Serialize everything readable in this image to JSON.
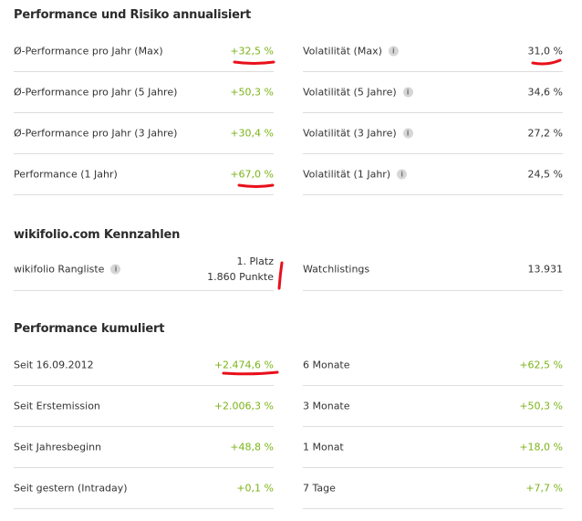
{
  "section1": {
    "title": "Performance und Risiko annualisiert",
    "rows_left": [
      {
        "label": "Ø-Performance pro Jahr (Max)",
        "value": "+32,5 %"
      },
      {
        "label": "Ø-Performance pro Jahr (5 Jahre)",
        "value": "+50,3 %"
      },
      {
        "label": "Ø-Performance pro Jahr (3 Jahre)",
        "value": "+30,4 %"
      },
      {
        "label": "Performance (1 Jahr)",
        "value": "+67,0 %"
      }
    ],
    "rows_right": [
      {
        "label": "Volatilität (Max)",
        "value": "31,0 %"
      },
      {
        "label": "Volatilität (5 Jahre)",
        "value": "34,6 %"
      },
      {
        "label": "Volatilität (3 Jahre)",
        "value": "27,2 %"
      },
      {
        "label": "Volatilität (1 Jahr)",
        "value": "24,5 %"
      }
    ]
  },
  "section2": {
    "title": "wikifolio.com Kennzahlen",
    "rangliste": {
      "label": "wikifolio Rangliste",
      "line1": "1. Platz",
      "line2": "1.860 Punkte"
    },
    "watchlistings": {
      "label": "Watchlistings",
      "value": "13.931"
    }
  },
  "section3": {
    "title": "Performance kumuliert",
    "rows_left": [
      {
        "label": "Seit 16.09.2012",
        "value": "+2.474,6 %"
      },
      {
        "label": "Seit Erstemission",
        "value": "+2.006,3 %"
      },
      {
        "label": "Seit Jahresbeginn",
        "value": "+48,8 %"
      },
      {
        "label": "Seit gestern (Intraday)",
        "value": "+0,1 %"
      }
    ],
    "rows_right": [
      {
        "label": "6 Monate",
        "value": "+62,5 %"
      },
      {
        "label": "3 Monate",
        "value": "+50,3 %"
      },
      {
        "label": "1 Monat",
        "value": "+18,0 %"
      },
      {
        "label": "7 Tage",
        "value": "+7,7 %"
      }
    ]
  },
  "icons": {
    "info": "info-icon"
  },
  "colors": {
    "positive": "#7ab317",
    "annotation": "#e8101b",
    "divider": "#dddddd"
  }
}
